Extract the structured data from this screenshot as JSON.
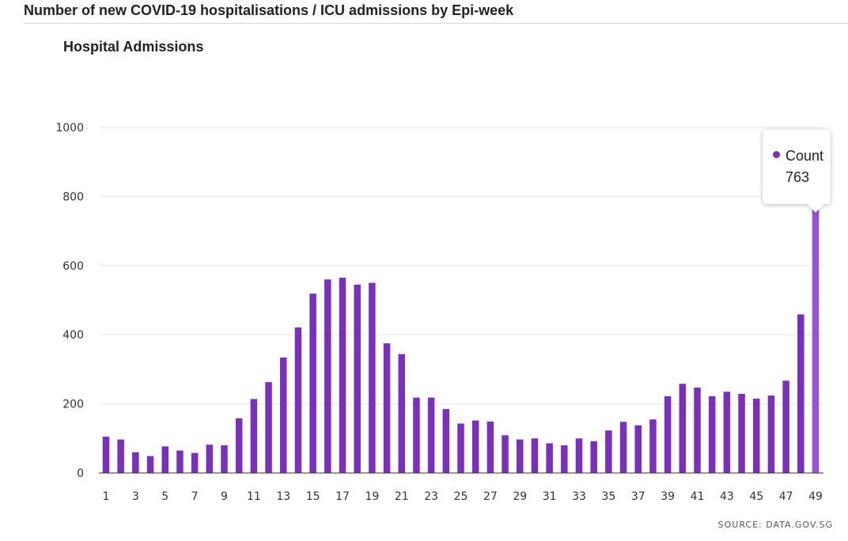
{
  "page": {
    "title": "Number of new COVID-19 hospitalisations / ICU admissions by Epi-week",
    "source": "SOURCE: DATA.GOV.SG"
  },
  "colors": {
    "bar": "#7b2fbe",
    "bar_highlight": "#9b4fe0",
    "grid": "#e6e6e6",
    "axis": "#333333"
  },
  "tooltip": {
    "label": "Count",
    "value": "763"
  },
  "chart_data": {
    "type": "bar",
    "title": "Hospital Admissions",
    "xlabel": "",
    "ylabel": "",
    "ylim": [
      0,
      1000
    ],
    "yticks": [
      0,
      200,
      400,
      600,
      800,
      1000
    ],
    "grid": true,
    "legend": "none",
    "xtick_labels": [
      "1",
      "3",
      "5",
      "7",
      "9",
      "11",
      "13",
      "15",
      "17",
      "19",
      "21",
      "23",
      "25",
      "27",
      "29",
      "31",
      "33",
      "35",
      "37",
      "39",
      "41",
      "43",
      "45",
      "47",
      "49"
    ],
    "categories": [
      "1",
      "2",
      "3",
      "4",
      "5",
      "6",
      "7",
      "8",
      "9",
      "10",
      "11",
      "12",
      "13",
      "14",
      "15",
      "16",
      "17",
      "18",
      "19",
      "20",
      "21",
      "22",
      "23",
      "24",
      "25",
      "26",
      "27",
      "28",
      "29",
      "30",
      "31",
      "32",
      "33",
      "34",
      "35",
      "36",
      "37",
      "38",
      "39",
      "40",
      "41",
      "42",
      "43",
      "44",
      "45",
      "46",
      "47",
      "48",
      "49"
    ],
    "series": [
      {
        "name": "Count",
        "values": [
          105,
          97,
          60,
          49,
          77,
          65,
          58,
          82,
          80,
          158,
          214,
          263,
          334,
          421,
          519,
          560,
          565,
          545,
          550,
          375,
          344,
          218,
          218,
          185,
          143,
          152,
          149,
          109,
          97,
          100,
          86,
          80,
          100,
          92,
          123,
          148,
          138,
          155,
          222,
          258,
          247,
          222,
          235,
          229,
          215,
          224,
          267,
          459,
          763
        ]
      }
    ],
    "highlighted_index": 48
  }
}
